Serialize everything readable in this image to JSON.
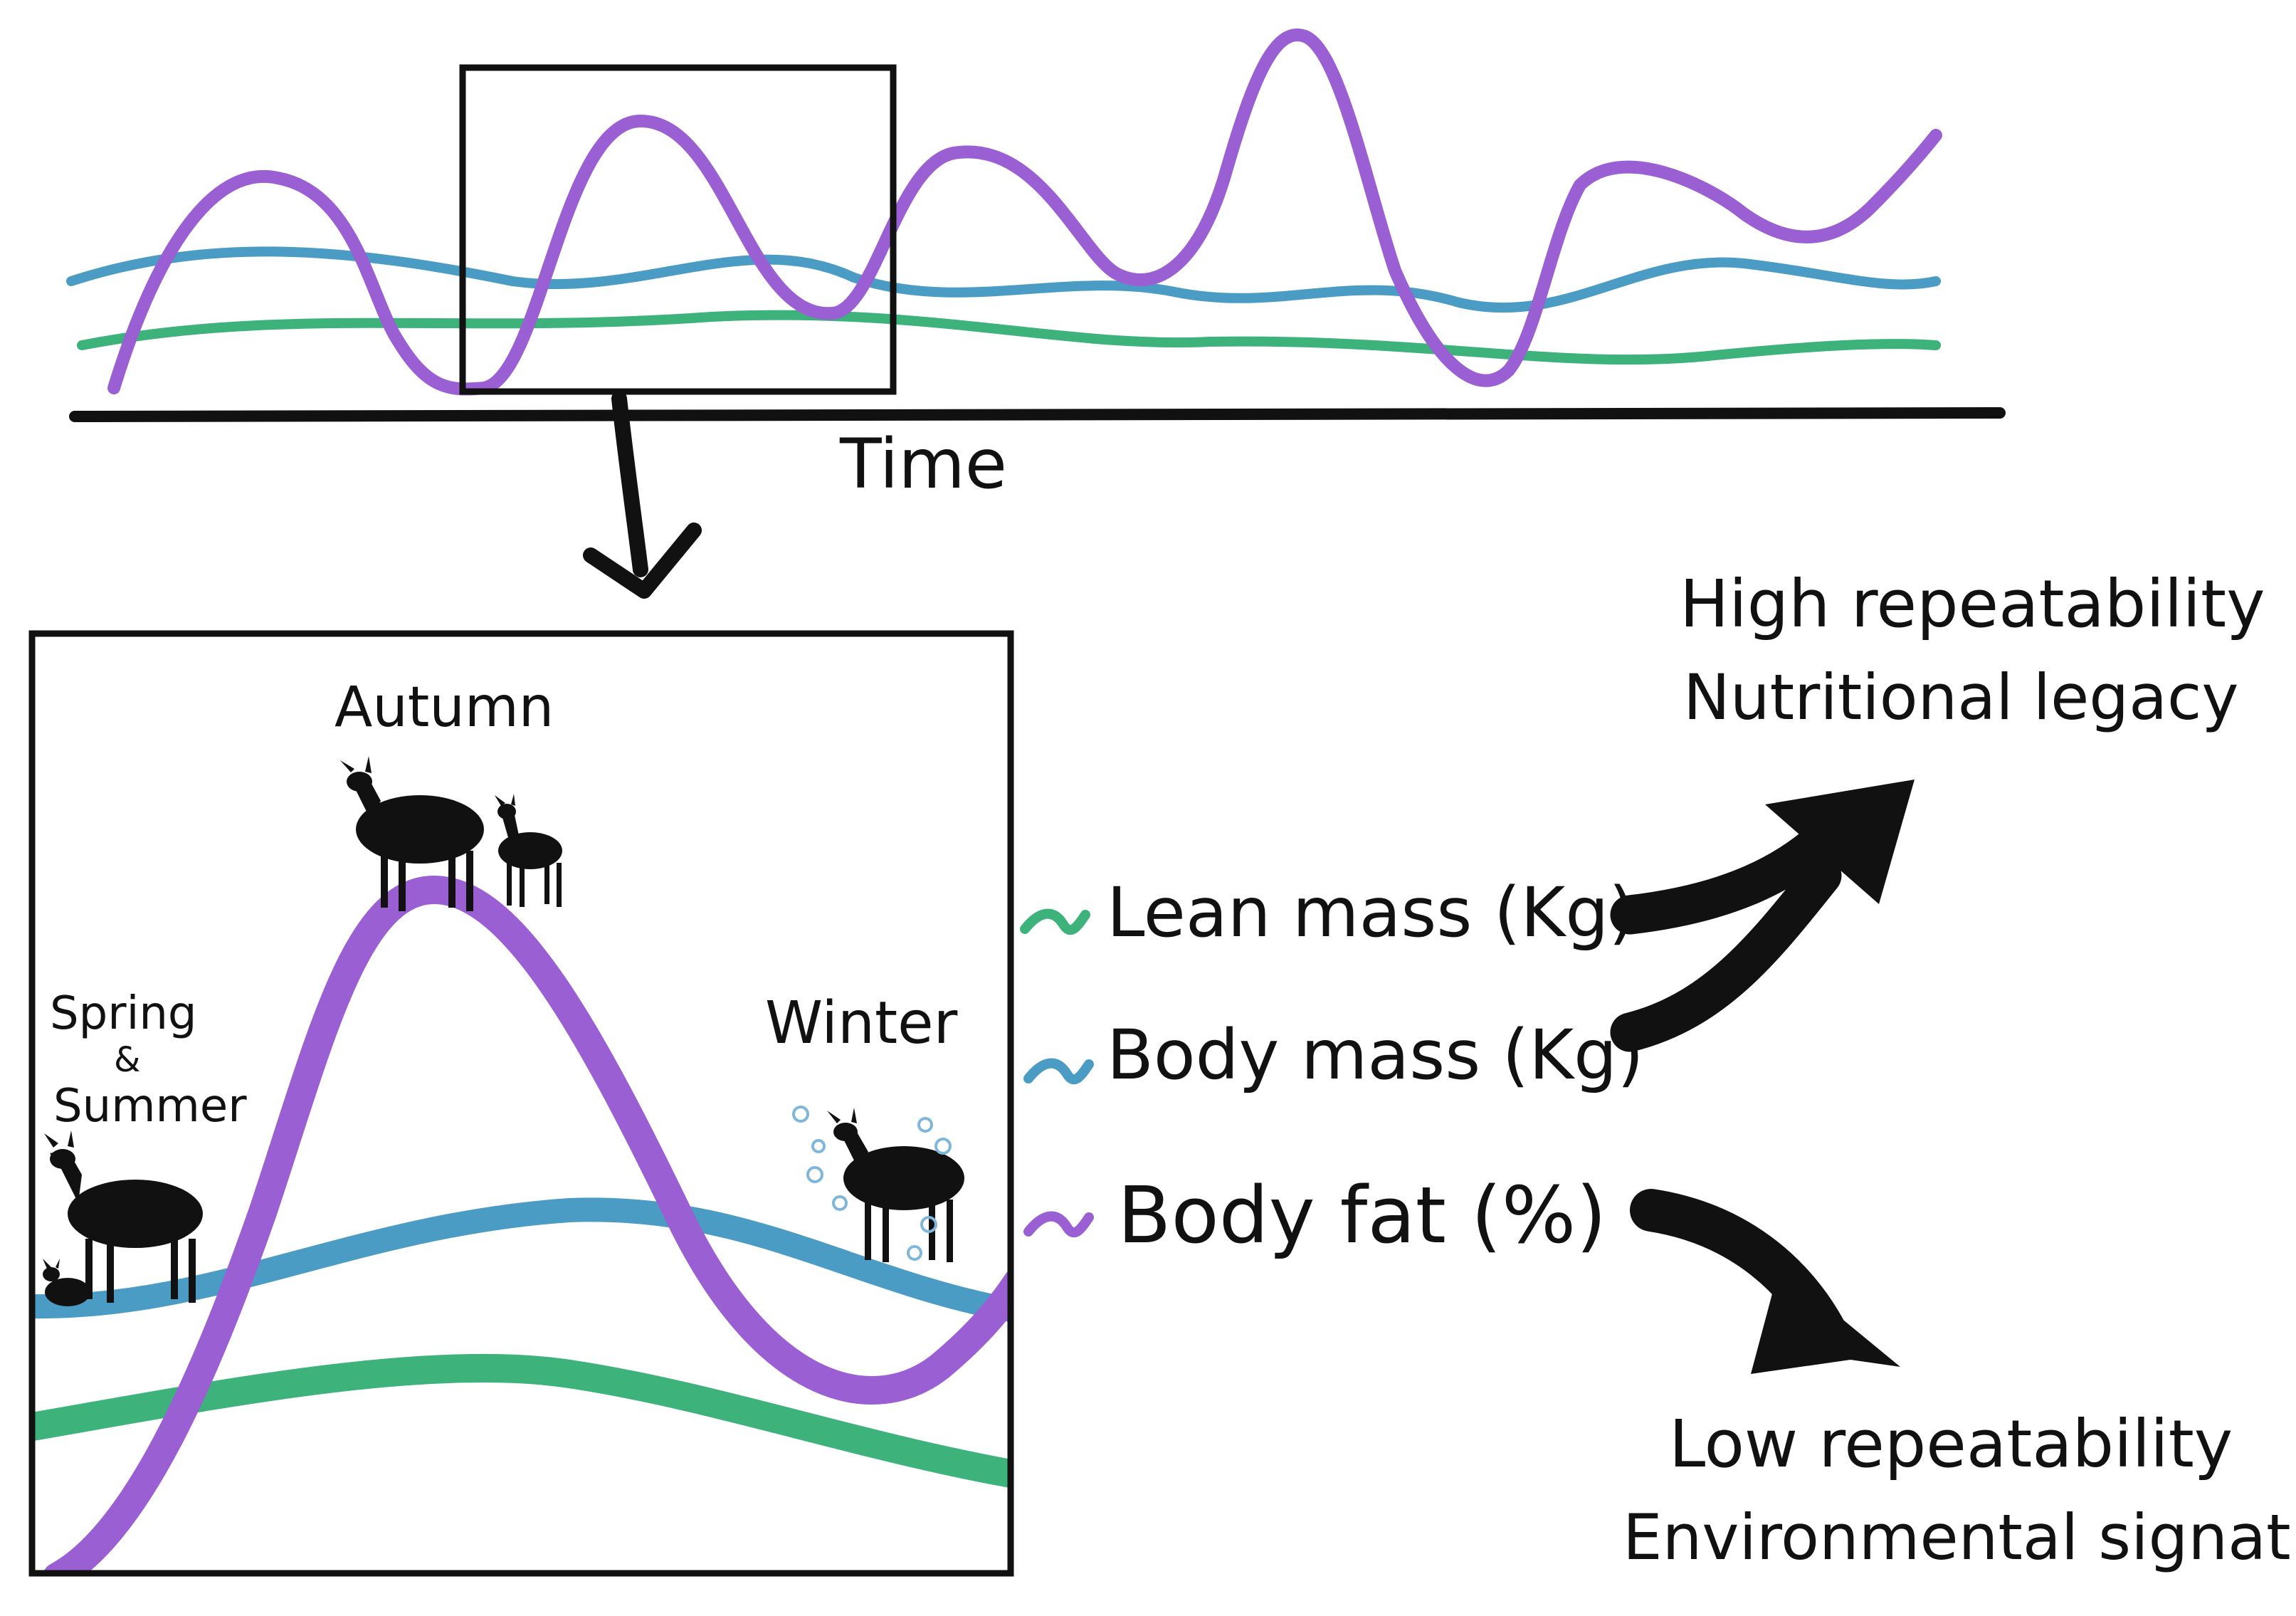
{
  "top_panel": {
    "axis_label": "Time"
  },
  "zoom_panel": {
    "season_labels": {
      "spring_line1": "Spring",
      "spring_line2": "&",
      "spring_line3": "Summer",
      "autumn": "Autumn",
      "winter": "Winter"
    }
  },
  "legend": {
    "items": [
      {
        "label": "Lean mass (Kg)",
        "color": "#3DB27A"
      },
      {
        "label": "Body mass (Kg)",
        "color": "#4A9CC4"
      },
      {
        "label": "Body fat (%)",
        "color": "#9B5FD4"
      }
    ]
  },
  "outcomes": {
    "high": {
      "line1": "High repeatability",
      "line2": "Nutritional legacy"
    },
    "low": {
      "line1": "Low repeatability",
      "line2": "Environmental signature"
    }
  },
  "icons": [
    "deer-silhouette-icon",
    "fawn-silhouette-icon",
    "snowflake-icon",
    "arrow-down-icon",
    "arrow-up-right-icon",
    "arrow-down-right-icon"
  ]
}
